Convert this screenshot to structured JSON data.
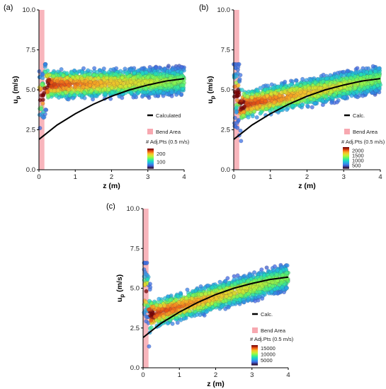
{
  "chart_data": [
    {
      "type": "scatter",
      "panel_label": "(a)",
      "xlabel": "z (m)",
      "ylabel": "u",
      "ylabel_sub": "p",
      "ylabel_unit": " (m/s)",
      "xlim": [
        0,
        4
      ],
      "ylim": [
        0,
        10
      ],
      "xticks": [
        "0",
        "1",
        "2",
        "3",
        "4"
      ],
      "yticks": [
        "0.0",
        "2.5",
        "5.0",
        "7.5",
        "10.0"
      ],
      "bend_area_x": [
        0,
        0.15
      ],
      "curve_label": "Calculated",
      "curve": {
        "x": [
          0,
          0.5,
          1,
          1.5,
          2,
          2.5,
          3,
          3.5,
          4
        ],
        "y": [
          1.9,
          2.8,
          3.5,
          4.1,
          4.6,
          5.0,
          5.3,
          5.55,
          5.7
        ]
      },
      "bend_label": "Bend Area",
      "colorbar_title": "# Adj.Pts (0.5 m/s)",
      "colorbar_ticks": [
        "200",
        "100"
      ],
      "colorbar_tick_values": [
        200,
        100
      ],
      "colorbar_range": [
        20,
        260
      ],
      "color_scale": "turbo"
    },
    {
      "type": "scatter",
      "panel_label": "(b)",
      "xlabel": "z (m)",
      "ylabel": "u",
      "ylabel_sub": "p",
      "ylabel_unit": " (m/s)",
      "xlim": [
        0,
        4
      ],
      "ylim": [
        0,
        10
      ],
      "xticks": [
        "0",
        "1",
        "2",
        "3",
        "4"
      ],
      "yticks": [
        "0.0",
        "2.5",
        "5.0",
        "7.5",
        "10.0"
      ],
      "bend_area_x": [
        0,
        0.15
      ],
      "curve_label": "Calc.",
      "curve": {
        "x": [
          0,
          0.5,
          1,
          1.5,
          2,
          2.5,
          3,
          3.5,
          4
        ],
        "y": [
          1.9,
          2.8,
          3.5,
          4.1,
          4.6,
          5.0,
          5.3,
          5.55,
          5.7
        ]
      },
      "bend_label": "Bend Area",
      "colorbar_title": "# Adj.Pts (0.5 m/s)",
      "colorbar_ticks": [
        "2000",
        "1500",
        "1000",
        "500"
      ],
      "colorbar_tick_values": [
        2000,
        1500,
        1000,
        500
      ],
      "colorbar_range": [
        200,
        2300
      ],
      "color_scale": "turbo"
    },
    {
      "type": "scatter",
      "panel_label": "(c)",
      "xlabel": "z (m)",
      "ylabel": "u",
      "ylabel_sub": "p",
      "ylabel_unit": " (m/s)",
      "xlim": [
        0,
        4
      ],
      "ylim": [
        0,
        10
      ],
      "xticks": [
        "0",
        "1",
        "2",
        "3",
        "4"
      ],
      "yticks": [
        "0.0",
        "2.5",
        "5.0",
        "7.5",
        "10.0"
      ],
      "bend_area_x": [
        0,
        0.15
      ],
      "curve_label": "Calc.",
      "curve": {
        "x": [
          0,
          0.5,
          1,
          1.5,
          2,
          2.5,
          3,
          3.5,
          4
        ],
        "y": [
          1.9,
          2.8,
          3.5,
          4.1,
          4.6,
          5.0,
          5.3,
          5.55,
          5.7
        ]
      },
      "bend_label": "Bend Area",
      "colorbar_title": "# Adj.Pts (0.5 m/s)",
      "colorbar_ticks": [
        "15000",
        "10000",
        "5000"
      ],
      "colorbar_tick_values": [
        15000,
        10000,
        5000
      ],
      "colorbar_range": [
        1000,
        17500
      ],
      "color_scale": "turbo"
    }
  ]
}
